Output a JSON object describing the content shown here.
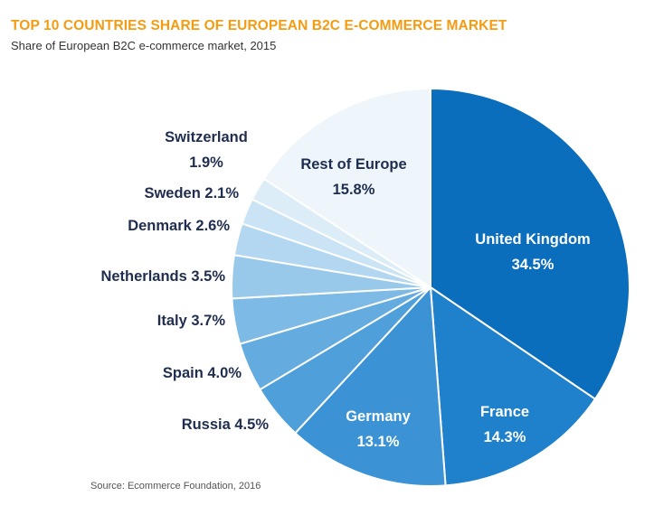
{
  "title": "TOP 10 COUNTRIES SHARE OF EUROPEAN B2C E-COMMERCE MARKET",
  "subtitle": "Share of European B2C e-commerce market, 2015",
  "source": "Source: Ecommerce Foundation, 2016",
  "chart_data": {
    "type": "pie",
    "title": "TOP 10 COUNTRIES SHARE OF EUROPEAN B2C E-COMMERCE MARKET",
    "subtitle": "Share of European B2C e-commerce market, 2015",
    "unit": "%",
    "slices": [
      {
        "label": "United Kingdom",
        "value": 34.5,
        "display": "34.5%",
        "color": "#0A6EBD",
        "text_color": "#ffffff"
      },
      {
        "label": "France",
        "value": 14.3,
        "display": "14.3%",
        "color": "#1F80CC",
        "text_color": "#ffffff"
      },
      {
        "label": "Germany",
        "value": 13.1,
        "display": "13.1%",
        "color": "#3B93D5",
        "text_color": "#ffffff"
      },
      {
        "label": "Russia",
        "value": 4.5,
        "display": "4.5%",
        "color": "#4E9FDA",
        "text_color": "#1F2D4F"
      },
      {
        "label": "Spain",
        "value": 4.0,
        "display": "4.0%",
        "color": "#64ACDF",
        "text_color": "#1F2D4F"
      },
      {
        "label": "Italy",
        "value": 3.7,
        "display": "3.7%",
        "color": "#7DBAE5",
        "text_color": "#1F2D4F"
      },
      {
        "label": "Netherlands",
        "value": 3.5,
        "display": "3.5%",
        "color": "#98C9EA",
        "text_color": "#1F2D4F"
      },
      {
        "label": "Denmark",
        "value": 2.6,
        "display": "2.6%",
        "color": "#B3D7F0",
        "text_color": "#1F2D4F"
      },
      {
        "label": "Sweden",
        "value": 2.1,
        "display": "2.1%",
        "color": "#CAE3F5",
        "text_color": "#1F2D4F"
      },
      {
        "label": "Switzerland",
        "value": 1.9,
        "display": "1.9%",
        "color": "#DDEDF8",
        "text_color": "#1F2D4F"
      },
      {
        "label": "Rest of Europe",
        "value": 15.8,
        "display": "15.8%",
        "color": "#EEF5FB",
        "text_color": "#1F2D4F"
      }
    ]
  }
}
